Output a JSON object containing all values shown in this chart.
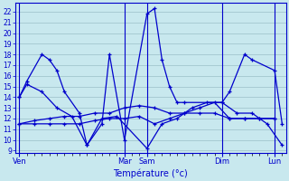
{
  "title": "Température (°c)",
  "bg_color": "#c8e8ee",
  "grid_color": "#9bbfc8",
  "line_color": "#0000cc",
  "ylim": [
    8.8,
    22.8
  ],
  "yticks": [
    9,
    10,
    11,
    12,
    13,
    14,
    15,
    16,
    17,
    18,
    19,
    20,
    21,
    22
  ],
  "day_labels": [
    "Ven",
    "Mar",
    "Sam",
    "Dim",
    "Lun"
  ],
  "day_positions": [
    0,
    14,
    17,
    27,
    34
  ],
  "xtick_positions": [
    0,
    1,
    2,
    3,
    4,
    5,
    6,
    7,
    8,
    9,
    10,
    11,
    12,
    13,
    14,
    15,
    16,
    17,
    18,
    19,
    20,
    21,
    22,
    23,
    24,
    25,
    26,
    27,
    28,
    29,
    30,
    31,
    32,
    33,
    34,
    35
  ],
  "xlim": [
    -0.5,
    35.5
  ],
  "s1_x": [
    0,
    1,
    3,
    4,
    5,
    6,
    8,
    9,
    11,
    12,
    14,
    17,
    18,
    19,
    20,
    21,
    22,
    27,
    28,
    30,
    31,
    34,
    35
  ],
  "s1_y": [
    14,
    15.5,
    18.0,
    17.5,
    16.5,
    14.5,
    12.5,
    9.5,
    11.5,
    18.0,
    10.0,
    21.8,
    22.3,
    17.5,
    15.0,
    13.5,
    13.5,
    13.5,
    14.5,
    18.0,
    17.5,
    16.5,
    11.5
  ],
  "s2_x": [
    0,
    1,
    3,
    5,
    7,
    9,
    11,
    13,
    17,
    19,
    21,
    23,
    25,
    27,
    29,
    31,
    33,
    35
  ],
  "s2_y": [
    14,
    15.2,
    14.5,
    13.0,
    12.2,
    9.5,
    12.0,
    12.2,
    9.2,
    11.5,
    12.0,
    13.0,
    13.5,
    13.5,
    12.5,
    12.5,
    11.5,
    9.5
  ],
  "s3_x": [
    0,
    2,
    4,
    6,
    8,
    10,
    12,
    14,
    16,
    18,
    20,
    22,
    24,
    26,
    28,
    30,
    32,
    34
  ],
  "s3_y": [
    11.5,
    11.5,
    11.5,
    11.5,
    11.5,
    11.8,
    12.0,
    12.0,
    12.2,
    11.5,
    12.0,
    12.5,
    13.0,
    13.5,
    12.0,
    12.0,
    12.0,
    12.0
  ],
  "s4_x": [
    0,
    2,
    4,
    6,
    8,
    10,
    12,
    14,
    16,
    18,
    20,
    22,
    24,
    26,
    28,
    30,
    32,
    34
  ],
  "s4_y": [
    11.5,
    11.8,
    12.0,
    12.2,
    12.2,
    12.5,
    12.5,
    13.0,
    13.2,
    13.0,
    12.5,
    12.5,
    12.5,
    12.5,
    12.0,
    12.0,
    12.0,
    12.0
  ]
}
